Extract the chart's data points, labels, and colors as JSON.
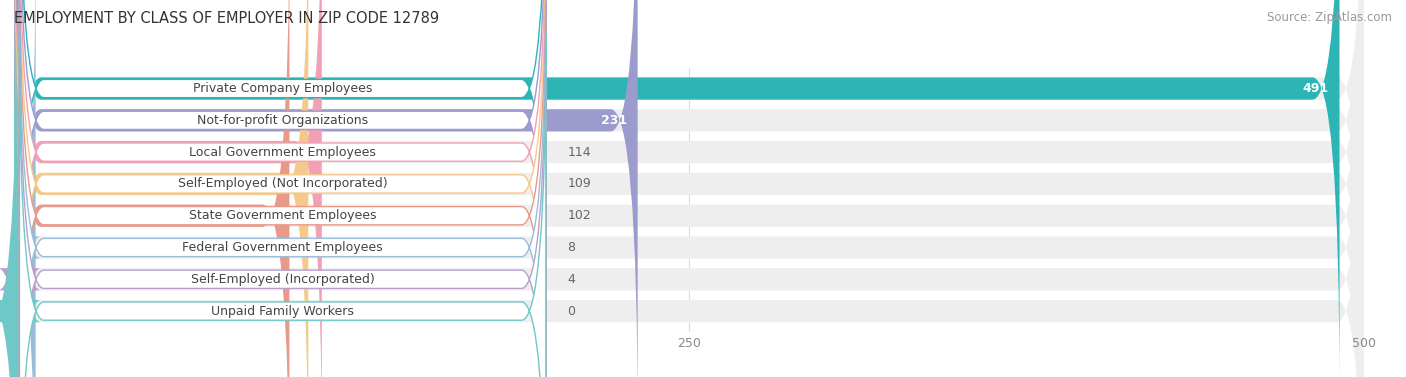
{
  "title": "EMPLOYMENT BY CLASS OF EMPLOYER IN ZIP CODE 12789",
  "source": "Source: ZipAtlas.com",
  "categories": [
    "Private Company Employees",
    "Not-for-profit Organizations",
    "Local Government Employees",
    "Self-Employed (Not Incorporated)",
    "State Government Employees",
    "Federal Government Employees",
    "Self-Employed (Incorporated)",
    "Unpaid Family Workers"
  ],
  "values": [
    491,
    231,
    114,
    109,
    102,
    8,
    4,
    0
  ],
  "bar_colors": [
    "#2db5b5",
    "#9b9bce",
    "#f2a0b5",
    "#f5c98a",
    "#e89a8a",
    "#9bbcd8",
    "#b8a0cc",
    "#6ec8c8"
  ],
  "label_border_colors": [
    "#2db5b5",
    "#9b9bce",
    "#f2a0b5",
    "#f5c98a",
    "#e89a8a",
    "#9bbcd8",
    "#b8a0cc",
    "#6ec8c8"
  ],
  "bg_color": "#ffffff",
  "bar_bg_color": "#eeeeee",
  "value_inside_color": "#ffffff",
  "value_outside_color": "#666666",
  "title_color": "#333333",
  "source_color": "#999999",
  "label_text_color": "#444444",
  "xlim": [
    0,
    500
  ],
  "xticks": [
    0,
    250,
    500
  ],
  "title_fontsize": 10.5,
  "bar_label_fontsize": 9,
  "value_fontsize": 9,
  "source_fontsize": 8.5,
  "inside_threshold": 150
}
